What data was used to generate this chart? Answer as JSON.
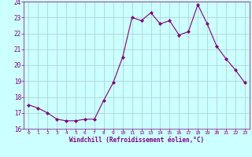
{
  "x": [
    0,
    1,
    2,
    3,
    4,
    5,
    6,
    7,
    8,
    9,
    10,
    11,
    12,
    13,
    14,
    15,
    16,
    17,
    18,
    19,
    20,
    21,
    22,
    23
  ],
  "y": [
    17.5,
    17.3,
    17.0,
    16.6,
    16.5,
    16.5,
    16.6,
    16.6,
    17.8,
    18.9,
    20.5,
    23.0,
    22.8,
    23.3,
    22.6,
    22.8,
    21.9,
    22.1,
    23.8,
    22.6,
    21.2,
    20.4,
    19.7,
    18.9
  ],
  "line_color": "#800080",
  "marker": "D",
  "marker_size": 2.0,
  "bg_color": "#ccffff",
  "grid_color": "#aacccc",
  "xlabel": "Windchill (Refroidissement éolien,°C)",
  "xlabel_color": "#800080",
  "tick_color": "#800080",
  "ylim": [
    16,
    24
  ],
  "xlim": [
    -0.5,
    23.5
  ],
  "yticks": [
    16,
    17,
    18,
    19,
    20,
    21,
    22,
    23,
    24
  ],
  "xticks": [
    0,
    1,
    2,
    3,
    4,
    5,
    6,
    7,
    8,
    9,
    10,
    11,
    12,
    13,
    14,
    15,
    16,
    17,
    18,
    19,
    20,
    21,
    22,
    23
  ],
  "figsize": [
    3.2,
    2.0
  ],
  "dpi": 100
}
